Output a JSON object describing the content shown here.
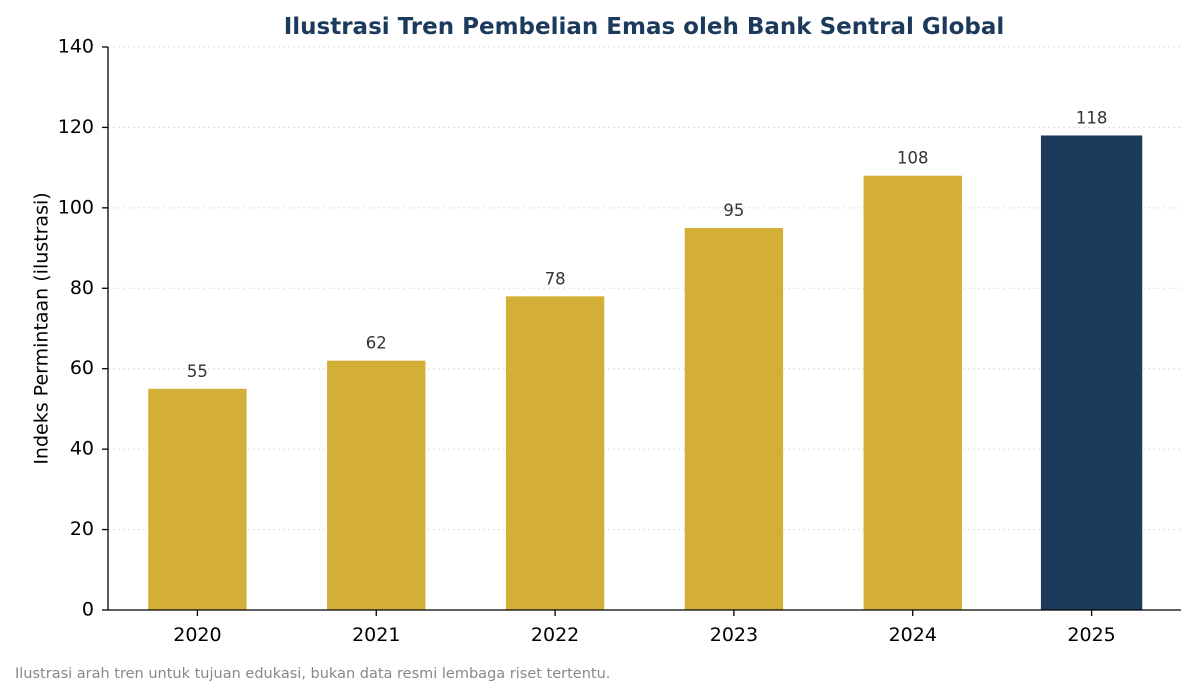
{
  "chart_data": {
    "type": "bar",
    "title": "Ilustrasi Tren Pembelian Emas oleh Bank Sentral Global",
    "xlabel": "",
    "ylabel": "Indeks Permintaan (ilustrasi)",
    "categories": [
      "2020",
      "2021",
      "2022",
      "2023",
      "2024",
      "2025"
    ],
    "values": [
      55,
      62,
      78,
      95,
      108,
      118
    ],
    "data_labels": [
      "55",
      "62",
      "78",
      "95",
      "108",
      "118"
    ],
    "ylim": [
      0,
      140
    ],
    "yticks": [
      0,
      20,
      40,
      60,
      80,
      100,
      120,
      140
    ],
    "grid": "horizontal dotted",
    "colors": {
      "bar": "#D3AF37",
      "highlight_bar": "#1B3A5C",
      "title": "#1B3A5C",
      "grid": "#dddddd"
    },
    "highlight_category": "2025"
  },
  "footnote": "Ilustrasi arah tren untuk tujuan edukasi, bukan data resmi lembaga riset tertentu."
}
